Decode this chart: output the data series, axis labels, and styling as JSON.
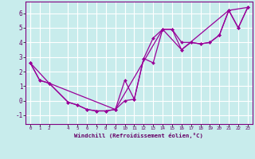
{
  "xlabel": "Windchill (Refroidissement éolien,°C)",
  "background_color": "#c8ecec",
  "grid_color": "#ffffff",
  "line_color": "#990099",
  "xlim": [
    -0.5,
    23.5
  ],
  "ylim": [
    -1.6,
    6.8
  ],
  "yticks": [
    -1,
    0,
    1,
    2,
    3,
    4,
    5,
    6
  ],
  "xticks": [
    0,
    1,
    2,
    4,
    5,
    6,
    7,
    8,
    9,
    10,
    11,
    12,
    13,
    14,
    15,
    16,
    17,
    18,
    19,
    20,
    21,
    22,
    23
  ],
  "line1_x": [
    0,
    1,
    2,
    4,
    5,
    6,
    7,
    8,
    9,
    10,
    11,
    12,
    13,
    14,
    15,
    16,
    17,
    18,
    19,
    20,
    21,
    22,
    23
  ],
  "line1_y": [
    2.6,
    1.4,
    1.2,
    -0.1,
    -0.3,
    -0.6,
    -0.7,
    -0.7,
    -0.6,
    1.4,
    0.1,
    2.9,
    4.3,
    4.9,
    4.9,
    4.0,
    4.0,
    3.9,
    4.0,
    4.5,
    6.2,
    5.0,
    6.4
  ],
  "line2_x": [
    0,
    1,
    2,
    4,
    5,
    6,
    7,
    8,
    9,
    10,
    11,
    12,
    13,
    14,
    15,
    16,
    17,
    18,
    19,
    20,
    21,
    22,
    23
  ],
  "line2_y": [
    2.6,
    1.4,
    1.2,
    -0.1,
    -0.3,
    -0.6,
    -0.7,
    -0.7,
    -0.6,
    0.0,
    0.1,
    2.9,
    2.6,
    4.9,
    4.9,
    3.5,
    4.0,
    3.9,
    4.0,
    4.5,
    6.2,
    5.0,
    6.4
  ],
  "line3_x": [
    0,
    2,
    9,
    14,
    16,
    21,
    23
  ],
  "line3_y": [
    2.6,
    1.2,
    -0.6,
    4.9,
    3.5,
    6.2,
    6.4
  ]
}
